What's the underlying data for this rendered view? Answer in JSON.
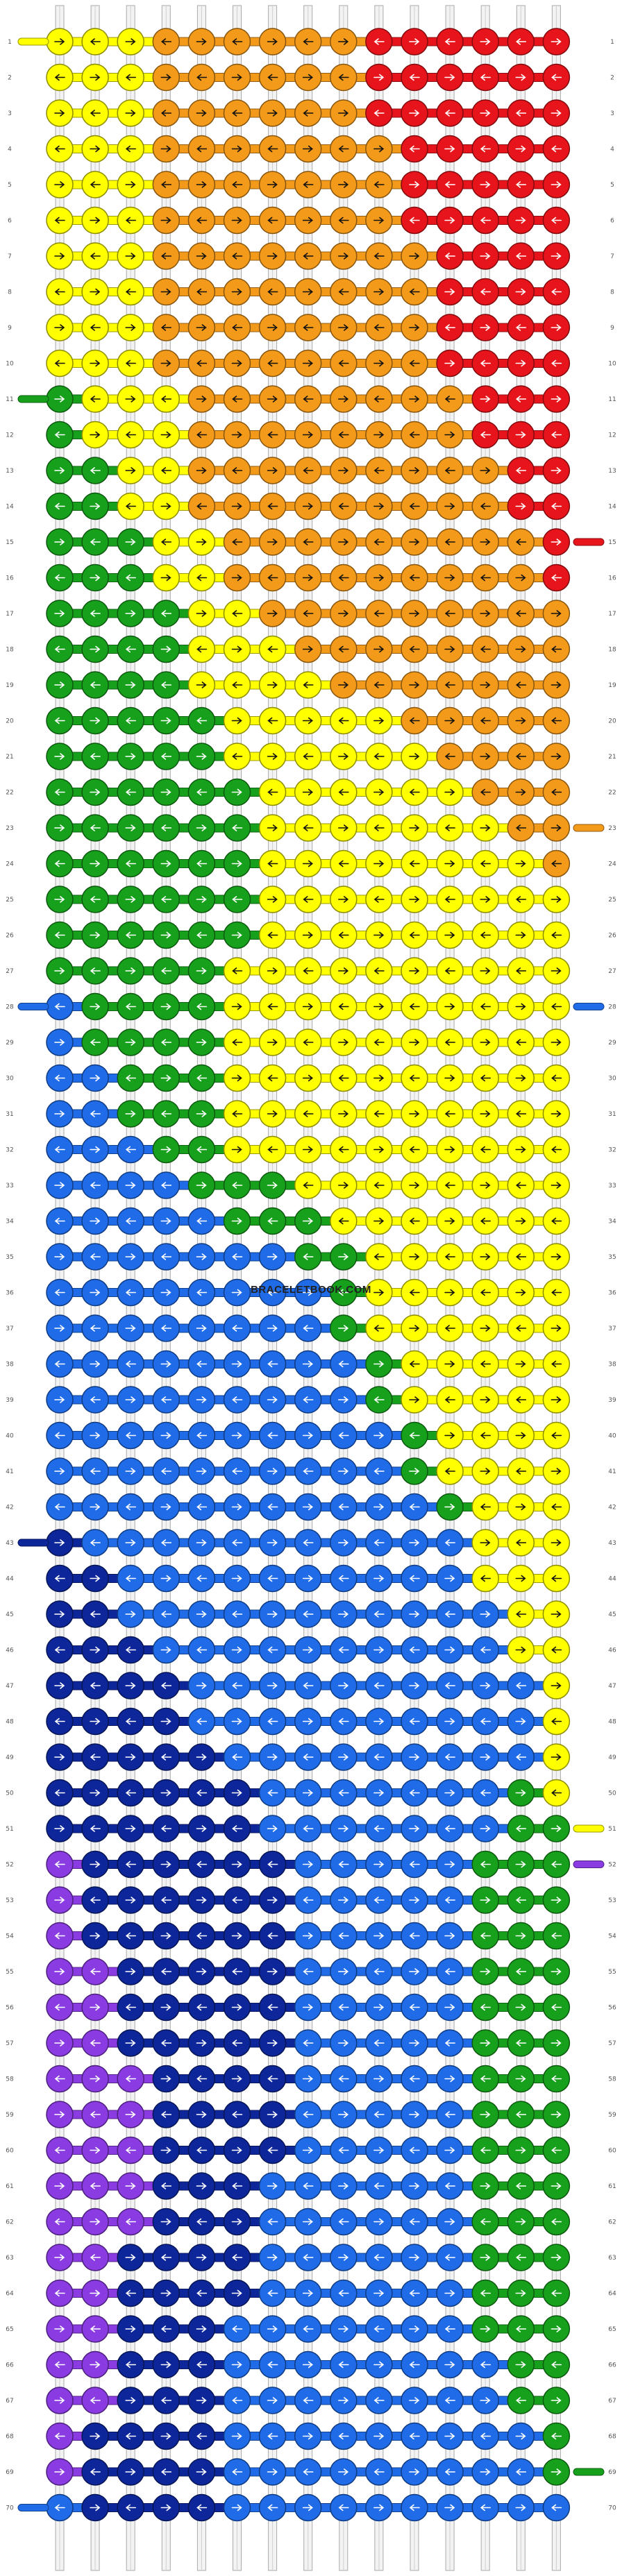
{
  "diagram": {
    "type": "alpha-pattern-friendship-bracelet",
    "watermark": "BRACELETBOOK.COM",
    "rows_total": 70,
    "strings": 15,
    "knot_columns": 15,
    "colors": {
      "yellow": "#FFFF00",
      "orange": "#F49A1A",
      "red": "#E8141B",
      "green": "#17A01C",
      "blue": "#1F6BE8",
      "navy": "#0D2699",
      "purple": "#8A3BE2",
      "thread": "#BBBBBB"
    },
    "row_labels": [
      "1",
      "2",
      "3",
      "4",
      "5",
      "6",
      "7",
      "8",
      "9",
      "10",
      "11",
      "12",
      "13",
      "14",
      "15",
      "16",
      "17",
      "18",
      "19",
      "20",
      "21",
      "22",
      "23",
      "24",
      "25",
      "26",
      "27",
      "28",
      "29",
      "30",
      "31",
      "32",
      "33",
      "34",
      "35",
      "36",
      "37",
      "38",
      "39",
      "40",
      "41",
      "42",
      "43",
      "44",
      "45",
      "46",
      "47",
      "48",
      "49",
      "50",
      "51",
      "52",
      "53",
      "54",
      "55",
      "56",
      "57",
      "58",
      "59",
      "60",
      "61",
      "62",
      "63",
      "64",
      "65",
      "66",
      "67",
      "68",
      "69",
      "70"
    ],
    "added_strings": [
      {
        "row": "1",
        "side": "left",
        "color": "yellow"
      },
      {
        "row": "11",
        "side": "left",
        "color": "green"
      },
      {
        "row": "15",
        "side": "right",
        "color": "red"
      },
      {
        "row": "23",
        "side": "right",
        "color": "orange"
      },
      {
        "row": "28",
        "side": "left",
        "color": "blue"
      },
      {
        "row": "28",
        "side": "right",
        "color": "blue"
      },
      {
        "row": "43",
        "side": "left",
        "color": "navy"
      },
      {
        "row": "51",
        "side": "right",
        "color": "yellow"
      },
      {
        "row": "52",
        "side": "right",
        "color": "purple"
      },
      {
        "row": "69",
        "side": "right",
        "color": "green"
      },
      {
        "row": "70",
        "side": "left",
        "color": "blue"
      }
    ],
    "rows": [
      "YYYOOOOOORRRRRR",
      "YYYOOOOOORRRRRR",
      "YYYOOOOOORRRRRR",
      "YYYOOOOOOORRRRR",
      "YYYOOOOOOORRRRR",
      "YYYOOOOOOORRRRR",
      "YYYOOOOOOOORRRR",
      "YYYOOOOOOOORRRR",
      "YYYOOOOOOOORRRR",
      "YYYOOOOOOOORRRR",
      "GYYYOOOOOOOORRR",
      "GYYYOOOOOOOORRR",
      "GGYYOOOOOOOOORR",
      "GGYYOOOOOOOOORR",
      "GGGYYOOOOOOOOOR",
      "GGGYYOOOOOOOOOR",
      "GGGGYYOOOOOOOOO",
      "GGGGYYYOOOOOOOO",
      "GGGGYYYYOOOOOOO",
      "GGGGGYYYYYOOOOO",
      "GGGGGYYYYYYOOOO",
      "GGGGGGYYYYYYOOO",
      "GGGGGGYYYYYYYOO",
      "GGGGGGYYYYYYYYO",
      "GGGGGGYYYYYYYYY",
      "GGGGGGYYYYYYYYY",
      "GGGGGYYYYYYYYYY",
      "BGGGGYYYYYYYYYY",
      "BGGGGYYYYYYYYYY",
      "BBGGGYYYYYYYYYY",
      "BBGGGYYYYYYYYYY",
      "BBBGGYYYYYYYYYY",
      "BBBBGGGYYYYYYYY",
      "BBBBBGGGYYYYYYY",
      "BBBBBBBGGYYYYYY",
      "BBBBBBBBGYYYYYY",
      "BBBBBBBBGYYYYYY",
      "BBBBBBBBBGYYYYY",
      "BBBBBBBBBGYYYYY",
      "BBBBBBBBBBGYYYY",
      "BBBBBBBBBBGYYYY",
      "BBBBBBBBBBBGYYY",
      "NBBBBBBBBBBBYYY",
      "NNBBBBBBBBBBYYY",
      "NNBBBBBBBBBBBYY",
      "NNNBBBBBBBBBBYY",
      "NNNNBBBBBBBBBBY",
      "NNNNBBBBBBBBBBY",
      "NNNNNBBBBBBBBBY",
      "NNNNNNBBBBBBBGY",
      "NNNNNNBBBBBBBGG",
      "PNNNNNNBBBBBGGG",
      "PNNNNNNBBBBBGGG",
      "PNNNNNNBBBBBGGG",
      "PPNNNNNBBBBBGGG",
      "PPNNNNNBBBBBGGG",
      "PPNNNNNBBBBBGGG",
      "PPPNNNNBBBBBGGG",
      "PPPNNNNBBBBBGGG",
      "PPPNNNNBBBBBGGG",
      "PPPNNNBBBBBBGGG",
      "PPPNNNBBBBBBGGG",
      "PPNNNNBBBBBBGGG",
      "PPNNNNBBBBBBGGG",
      "PPNNNBBBBBBBGGG",
      "PPNNNBBBBBBBBGG",
      "PPNNNBBBBBBBBGG",
      "PNNNNBBBBBBBBBG",
      "PNNNNBBBBBBBBBG",
      "BNNNNBBBBBBBBBB"
    ]
  }
}
